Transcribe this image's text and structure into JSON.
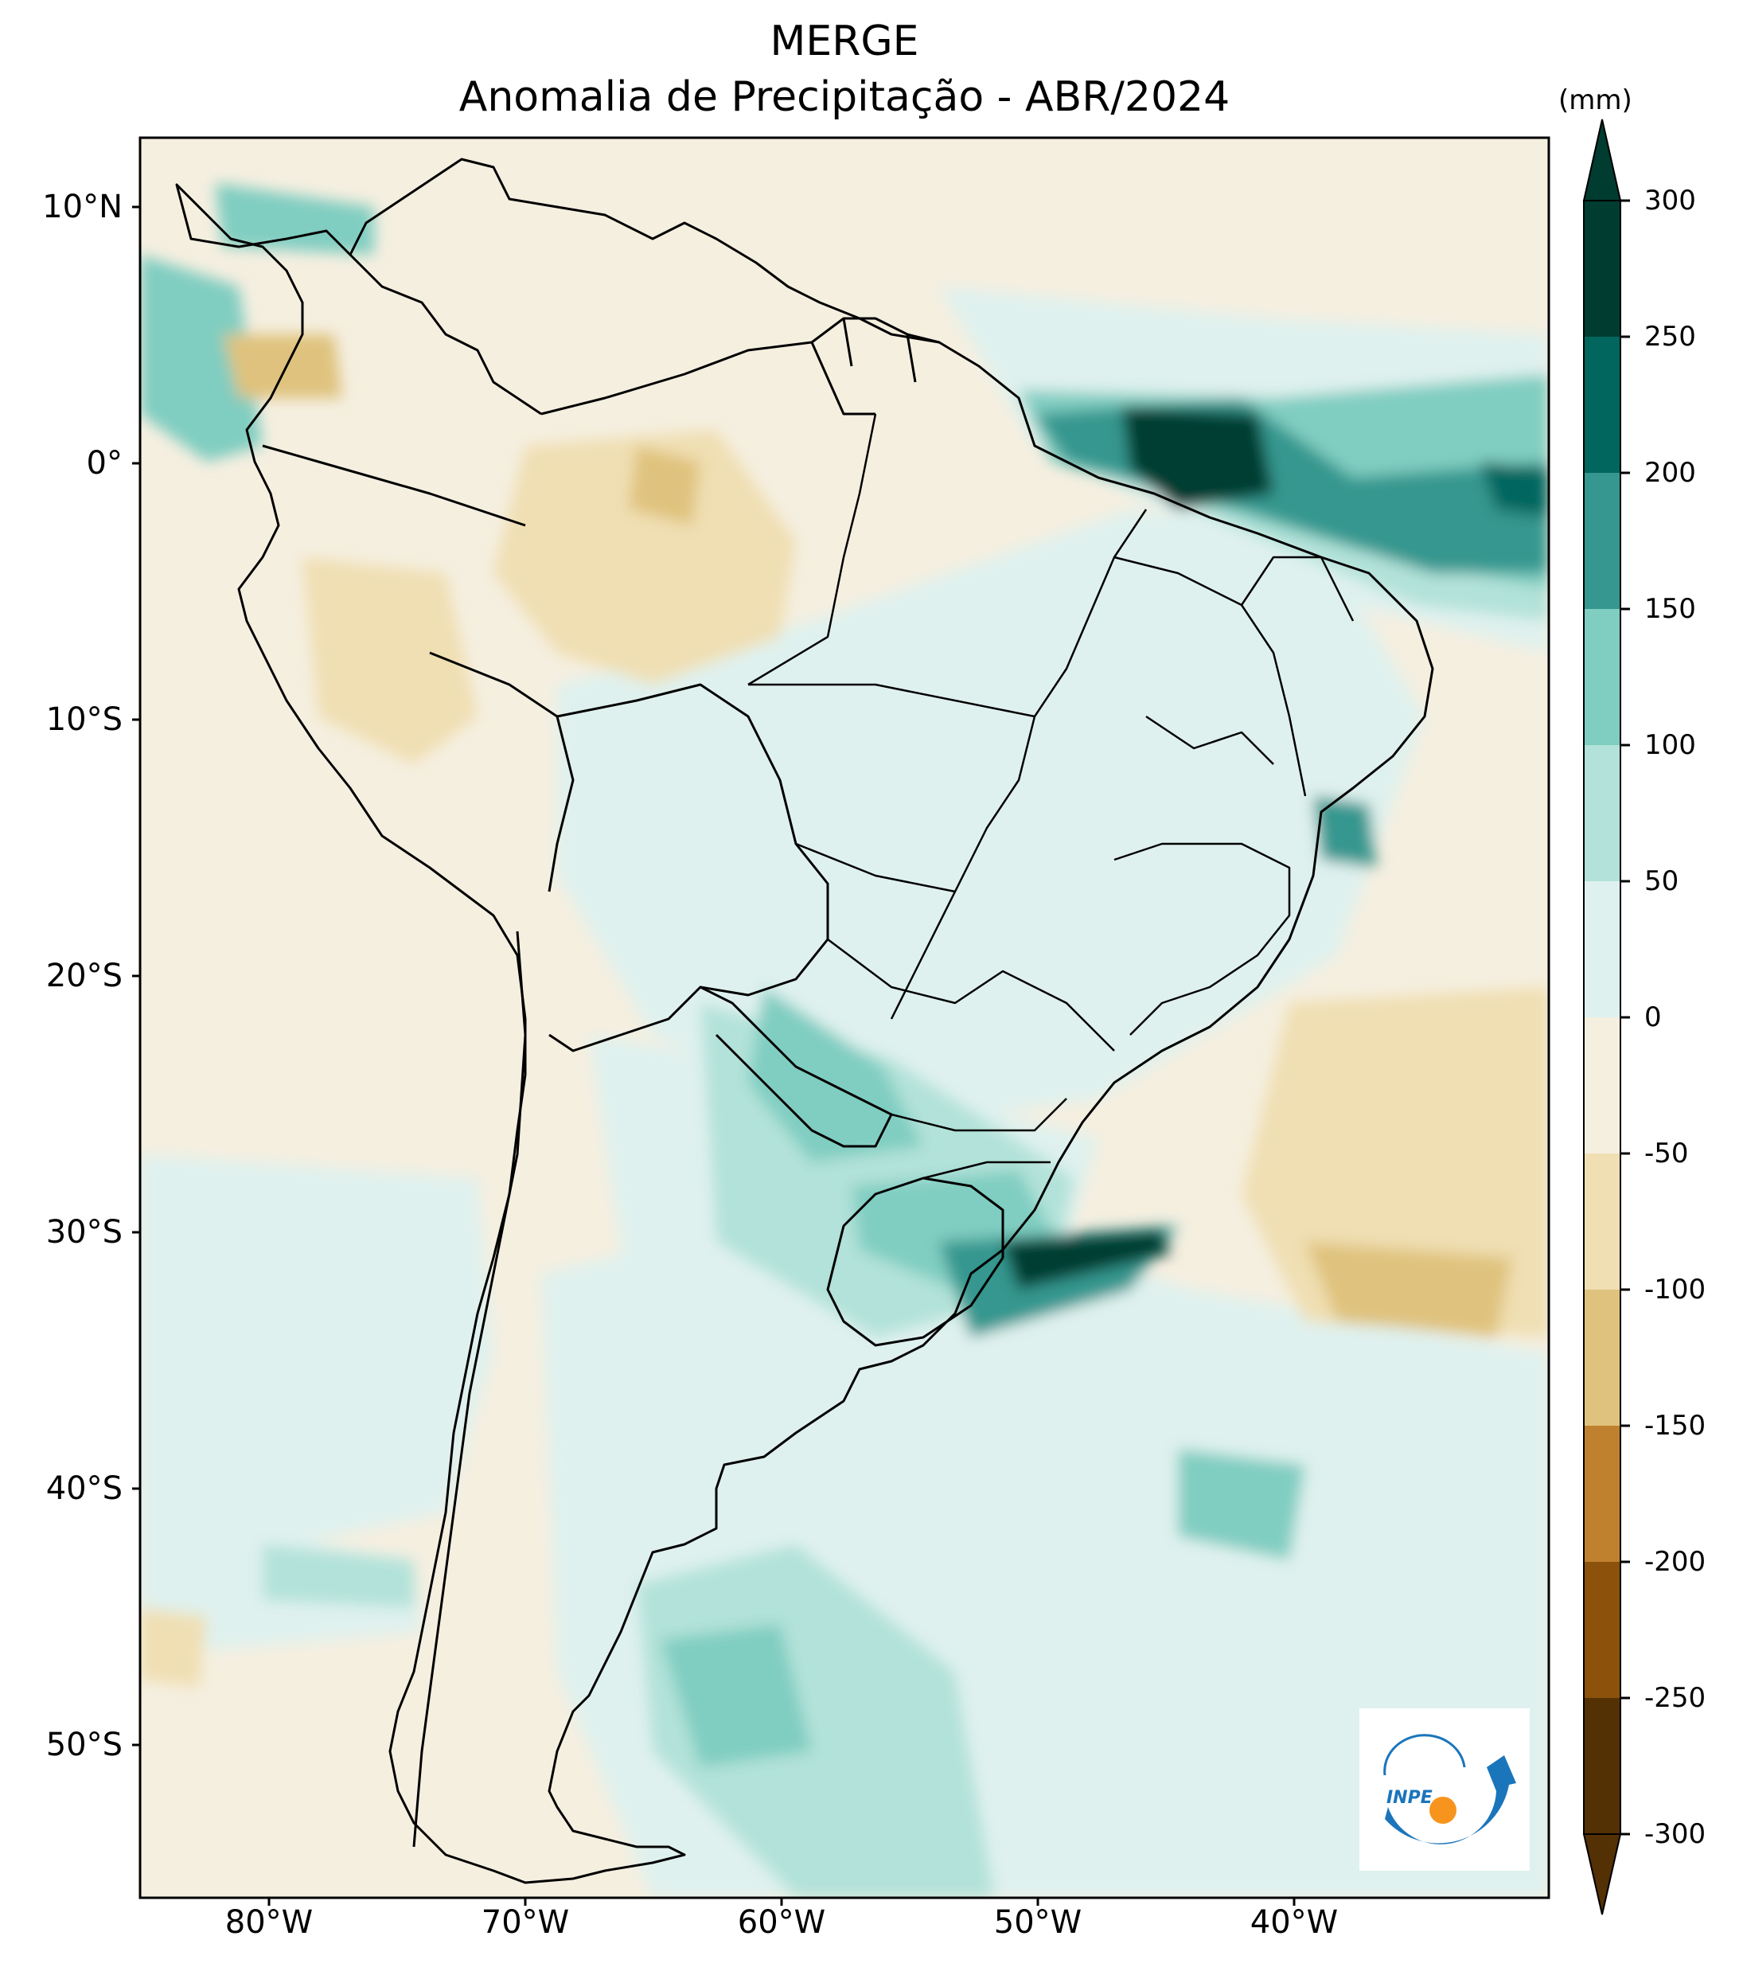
{
  "title": {
    "line1": "MERGE",
    "line2": "Anomalia de Precipitação - ABR/2024"
  },
  "axes": {
    "lat_labels": [
      "10°N",
      "0°",
      "10°S",
      "20°S",
      "30°S",
      "40°S",
      "50°S"
    ],
    "lon_labels": [
      "80°W",
      "70°W",
      "60°W",
      "50°W",
      "40°W"
    ]
  },
  "colorbar": {
    "unit": "(mm)",
    "ticks": [
      "300",
      "250",
      "200",
      "150",
      "100",
      "50",
      "0",
      "-50",
      "-100",
      "-150",
      "-200",
      "-250",
      "-300"
    ],
    "colors": [
      "#003c30",
      "#01665e",
      "#35978f",
      "#80cdc1",
      "#b2e2d9",
      "#dff1ee",
      "#f5efe0",
      "#f0dfb3",
      "#dfc27d",
      "#bf812d",
      "#8c510a",
      "#543005"
    ]
  },
  "logo": {
    "text": "INPE",
    "colors": {
      "blue": "#1a75bb",
      "orange": "#f7941d"
    }
  },
  "map_colors": {
    "background": "#f5efe0",
    "positive_light": "#dff1ee",
    "positive_mid": "#b2e2d9",
    "positive_high": "#80cdc1",
    "positive_strong": "#35978f",
    "positive_extreme": "#003c30",
    "negative_light": "#f0dfb3",
    "negative_mid": "#dfc27d",
    "negative_high": "#bf812d"
  }
}
